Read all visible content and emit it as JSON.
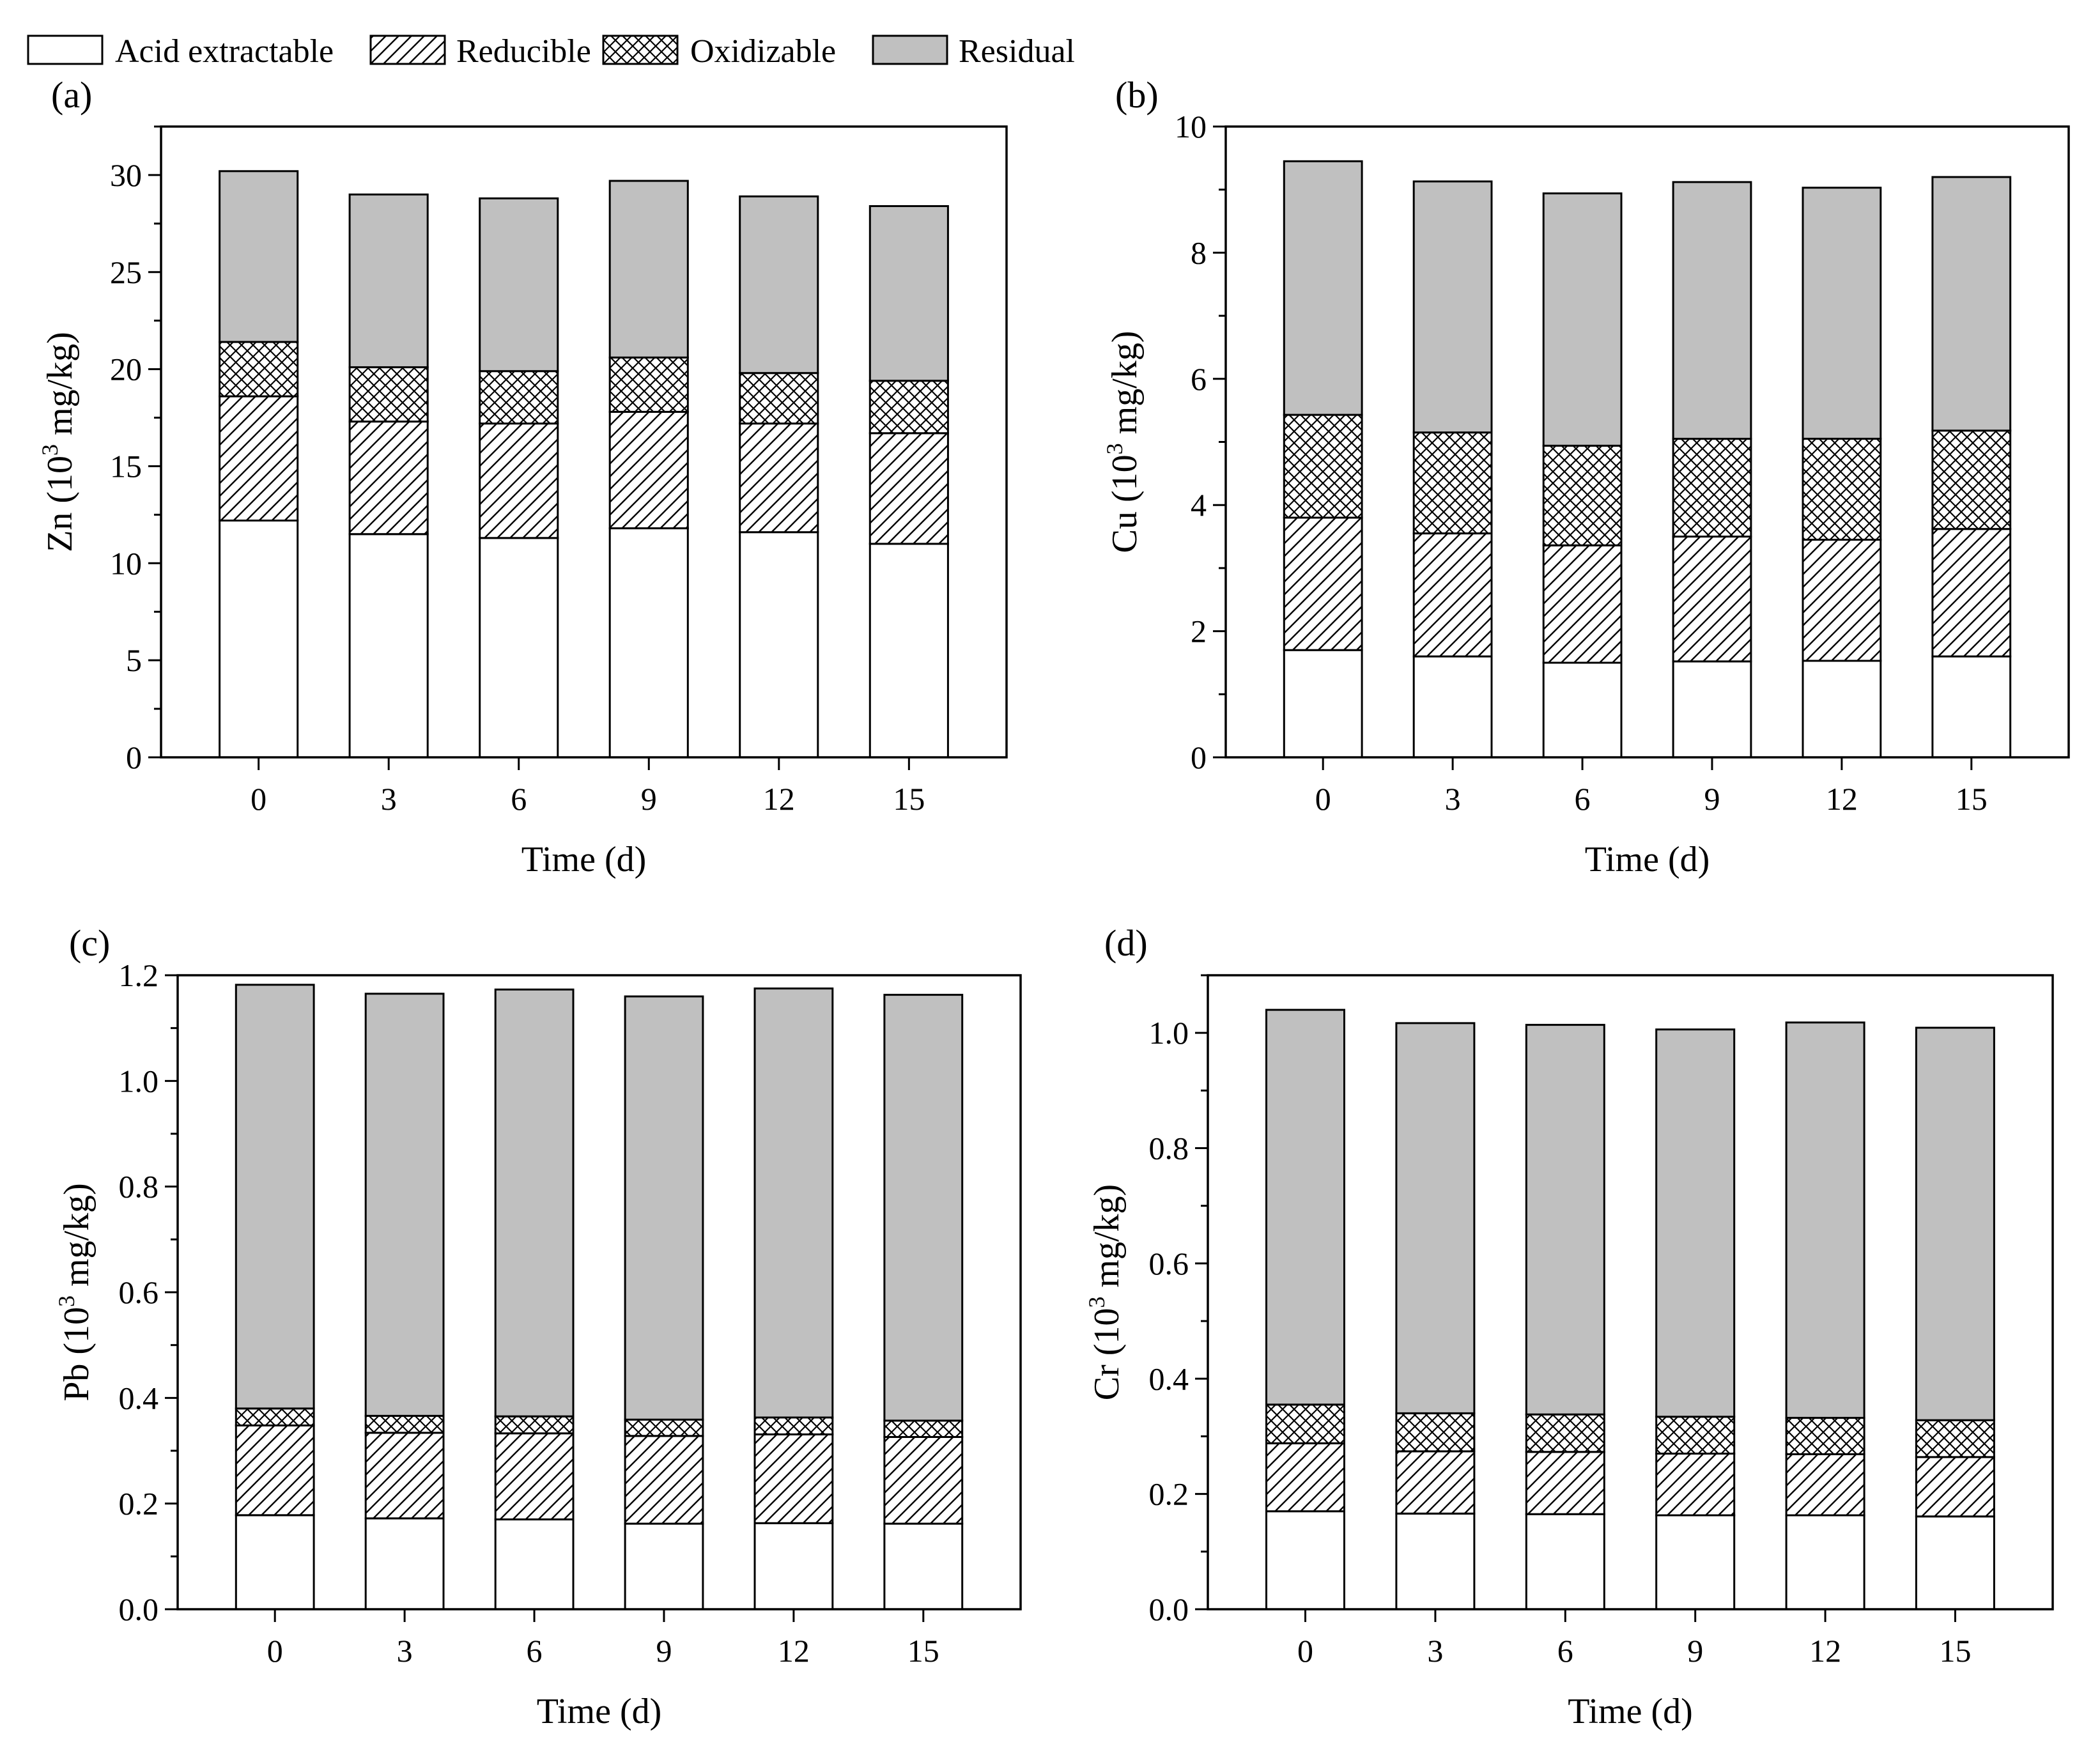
{
  "colors": {
    "acid_fill": "#ffffff",
    "residual_fill": "#c0c0c0",
    "line": "#000000"
  },
  "legend": [
    {
      "key": "acid",
      "label": "Acid extractable",
      "pattern": "none"
    },
    {
      "key": "reducible",
      "label": "Reducible",
      "pattern": "hatch"
    },
    {
      "key": "oxidizable",
      "label": "Oxidizable",
      "pattern": "crosshatch"
    },
    {
      "key": "residual",
      "label": "Residual",
      "pattern": "gray"
    }
  ],
  "chart_data": [
    {
      "panel": "(a)",
      "type": "bar",
      "stacked": true,
      "categories": [
        "0",
        "3",
        "6",
        "9",
        "12",
        "15"
      ],
      "xlabel": "Time (d)",
      "ylabel_main": "Zn (10",
      "ylabel_sup": "3",
      "ylabel_tail": " mg/kg)",
      "ylim": [
        0,
        32.5
      ],
      "yticks": [
        0,
        5,
        10,
        15,
        20,
        25,
        30
      ],
      "ytick_labels": [
        "0",
        "5",
        "10",
        "15",
        "20",
        "25",
        "30"
      ],
      "series": [
        {
          "name": "Acid extractable",
          "values": [
            12.2,
            11.5,
            11.3,
            11.8,
            11.6,
            11.0
          ]
        },
        {
          "name": "Reducible",
          "values": [
            6.4,
            5.8,
            5.9,
            6.0,
            5.6,
            5.7
          ]
        },
        {
          "name": "Oxidizable",
          "values": [
            2.8,
            2.8,
            2.7,
            2.8,
            2.6,
            2.7
          ]
        },
        {
          "name": "Residual",
          "values": [
            8.8,
            8.9,
            8.9,
            9.1,
            9.1,
            9.0
          ]
        }
      ]
    },
    {
      "panel": "(b)",
      "type": "bar",
      "stacked": true,
      "categories": [
        "0",
        "3",
        "6",
        "9",
        "12",
        "15"
      ],
      "xlabel": "Time (d)",
      "ylabel_main": "Cu (10",
      "ylabel_sup": "3",
      "ylabel_tail": " mg/kg)",
      "ylim": [
        0,
        10
      ],
      "yticks": [
        0,
        2,
        4,
        6,
        8,
        10
      ],
      "ytick_labels": [
        "0",
        "2",
        "4",
        "6",
        "8",
        "10"
      ],
      "series": [
        {
          "name": "Acid extractable",
          "values": [
            1.7,
            1.6,
            1.5,
            1.52,
            1.53,
            1.6
          ]
        },
        {
          "name": "Reducible",
          "values": [
            2.1,
            1.95,
            1.86,
            1.98,
            1.92,
            2.02
          ]
        },
        {
          "name": "Oxidizable",
          "values": [
            1.63,
            1.6,
            1.58,
            1.55,
            1.6,
            1.56
          ]
        },
        {
          "name": "Residual",
          "values": [
            4.02,
            3.98,
            4.0,
            4.07,
            3.98,
            4.02
          ]
        }
      ]
    },
    {
      "panel": "(c)",
      "type": "bar",
      "stacked": true,
      "categories": [
        "0",
        "3",
        "6",
        "9",
        "12",
        "15"
      ],
      "xlabel": "Time (d)",
      "ylabel_main": "Pb (10",
      "ylabel_sup": "3",
      "ylabel_tail": " mg/kg)",
      "ylim": [
        0,
        1.2
      ],
      "yticks": [
        0,
        0.2,
        0.4,
        0.6,
        0.8,
        1.0,
        1.2
      ],
      "ytick_labels": [
        "0.0",
        "0.2",
        "0.4",
        "0.6",
        "0.8",
        "1.0",
        "1.2"
      ],
      "series": [
        {
          "name": "Acid extractable",
          "values": [
            0.178,
            0.172,
            0.17,
            0.162,
            0.163,
            0.162
          ]
        },
        {
          "name": "Reducible",
          "values": [
            0.17,
            0.162,
            0.163,
            0.166,
            0.168,
            0.164
          ]
        },
        {
          "name": "Oxidizable",
          "values": [
            0.032,
            0.032,
            0.032,
            0.031,
            0.032,
            0.031
          ]
        },
        {
          "name": "Residual",
          "values": [
            0.802,
            0.799,
            0.808,
            0.801,
            0.812,
            0.806
          ]
        }
      ]
    },
    {
      "panel": "(d)",
      "type": "bar",
      "stacked": true,
      "categories": [
        "0",
        "3",
        "6",
        "9",
        "12",
        "15"
      ],
      "xlabel": "Time (d)",
      "ylabel_main": "Cr (10",
      "ylabel_sup": "3",
      "ylabel_tail": " mg/kg)",
      "ylim": [
        0,
        1.1
      ],
      "yticks": [
        0,
        0.2,
        0.4,
        0.6,
        0.8,
        1.0
      ],
      "ytick_labels": [
        "0.0",
        "0.2",
        "0.4",
        "0.6",
        "0.8",
        "1.0"
      ],
      "series": [
        {
          "name": "Acid extractable",
          "values": [
            0.17,
            0.166,
            0.165,
            0.163,
            0.163,
            0.161
          ]
        },
        {
          "name": "Reducible",
          "values": [
            0.118,
            0.108,
            0.108,
            0.107,
            0.106,
            0.103
          ]
        },
        {
          "name": "Oxidizable",
          "values": [
            0.067,
            0.066,
            0.065,
            0.064,
            0.063,
            0.064
          ]
        },
        {
          "name": "Residual",
          "values": [
            0.685,
            0.677,
            0.676,
            0.672,
            0.686,
            0.681
          ]
        }
      ]
    }
  ]
}
